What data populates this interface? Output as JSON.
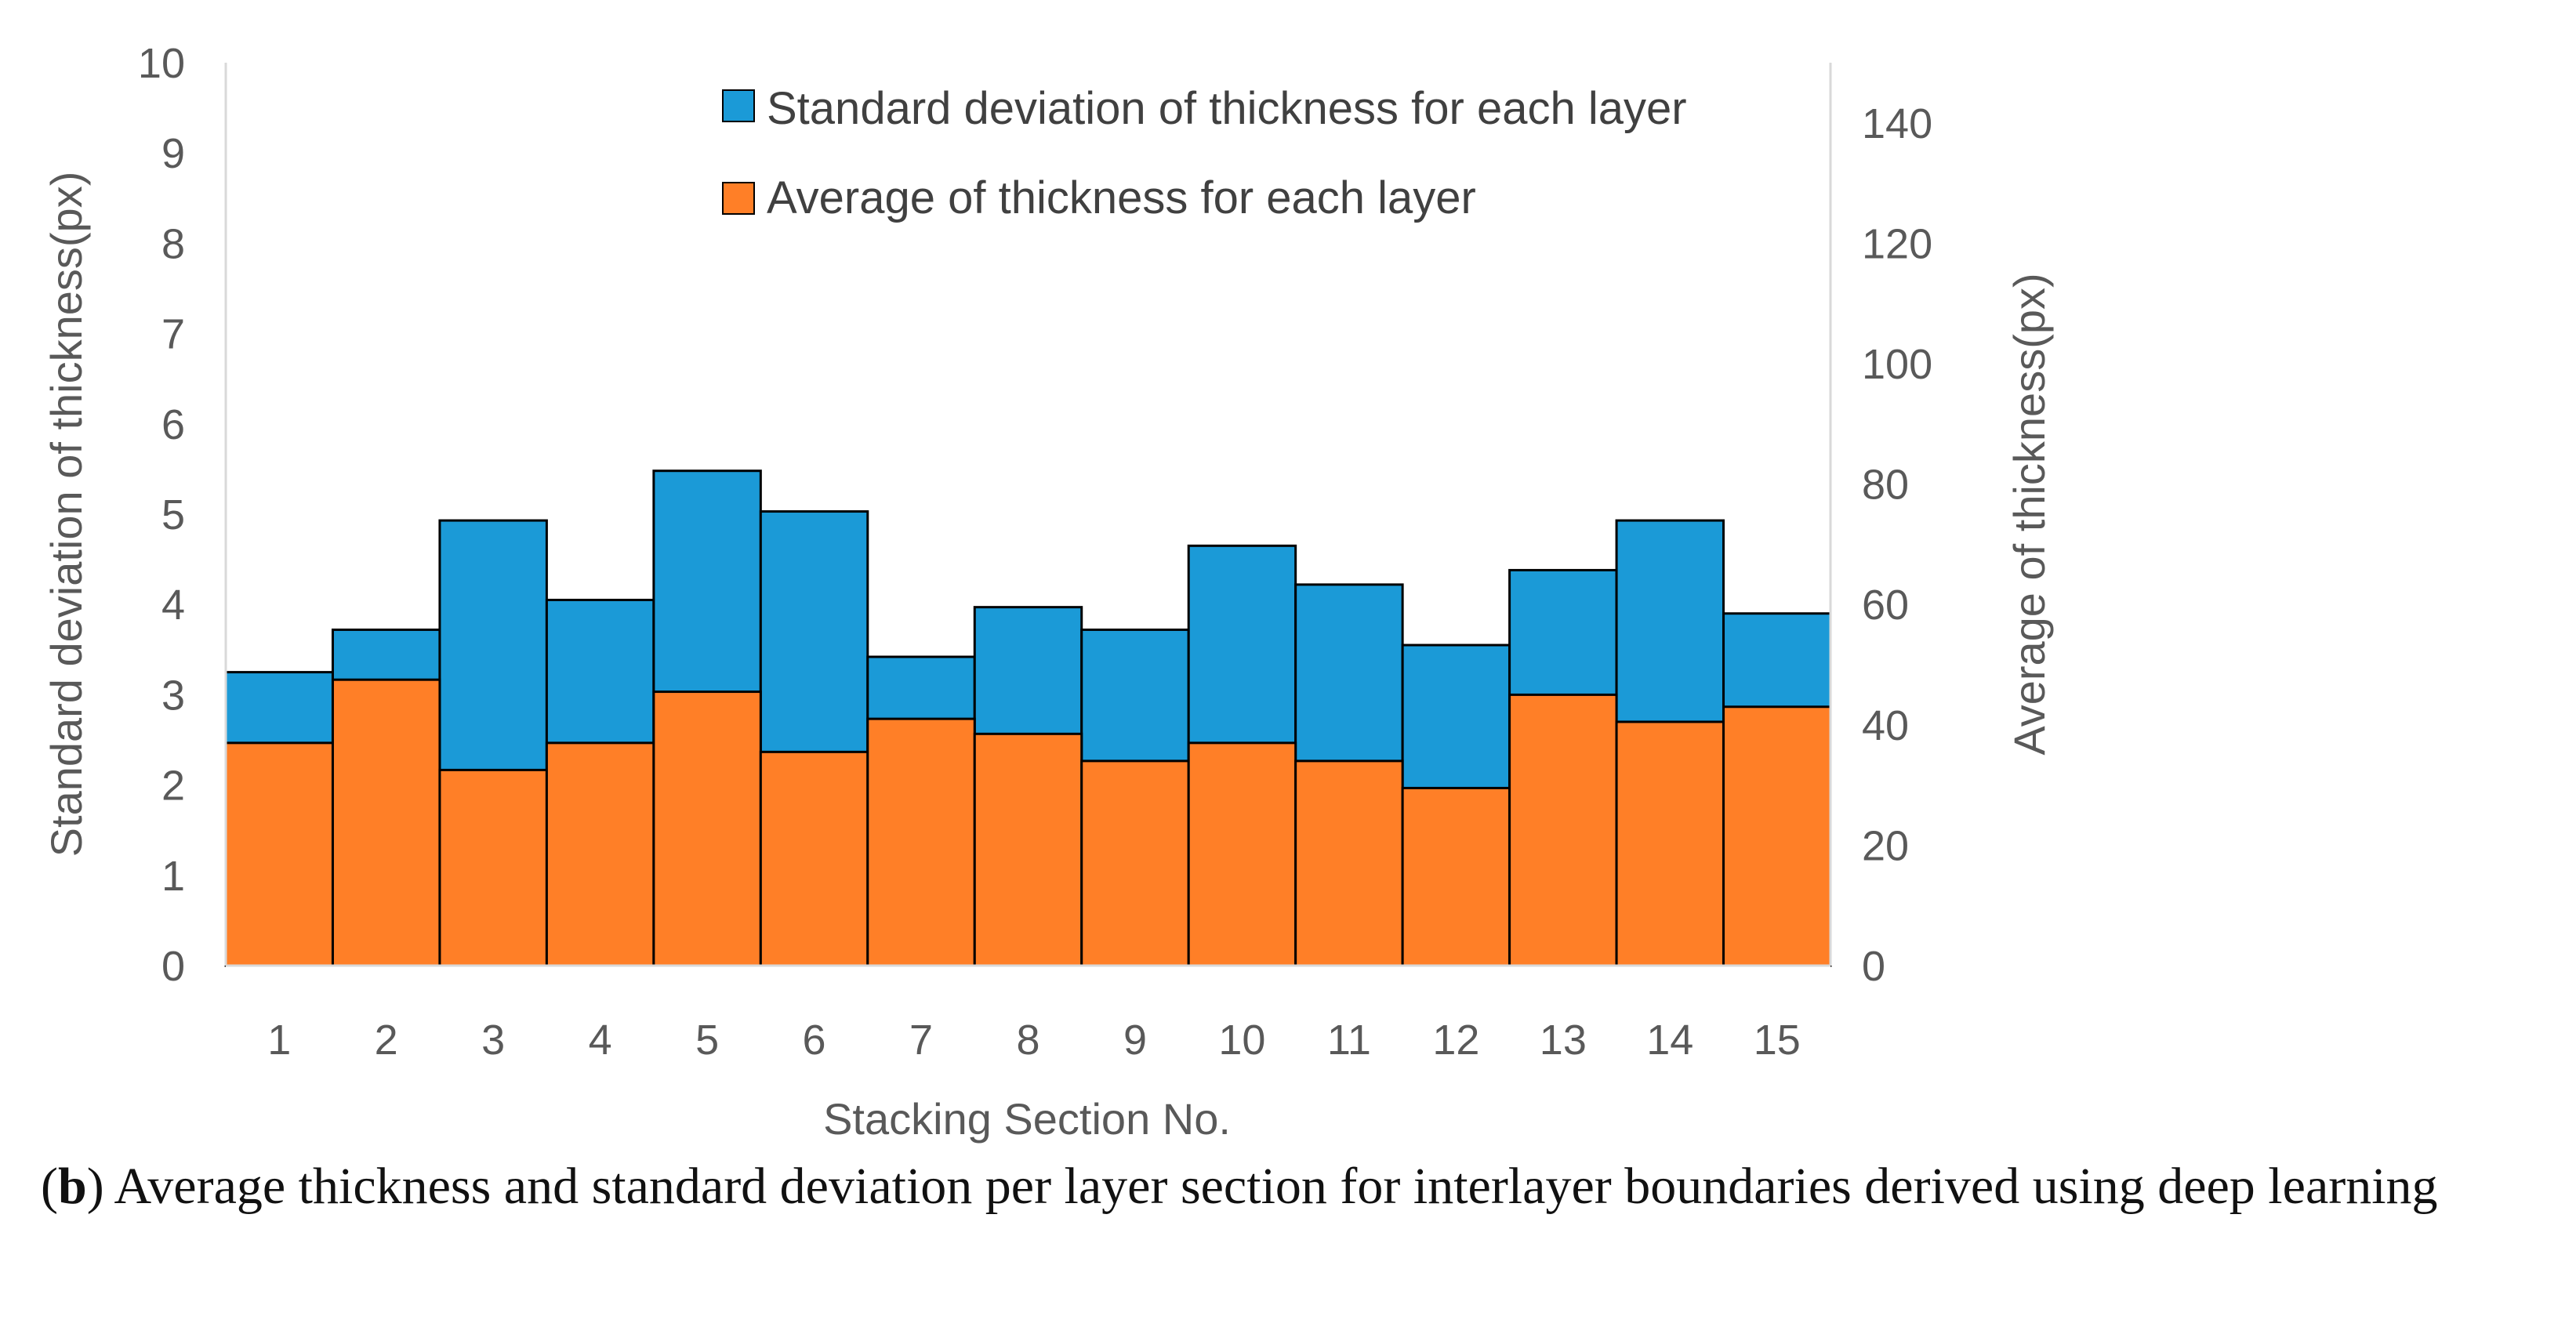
{
  "chart_data": {
    "type": "bar",
    "stacked": true,
    "categories": [
      "1",
      "2",
      "3",
      "4",
      "5",
      "6",
      "7",
      "8",
      "9",
      "10",
      "11",
      "12",
      "13",
      "14",
      "15"
    ],
    "series": [
      {
        "name": "Average of thickness for each layer",
        "axis": "right",
        "color": "#FF7F27",
        "values": [
          37,
          47.5,
          32.5,
          37,
          45.5,
          35.5,
          41,
          38.5,
          34,
          37,
          34,
          29.5,
          45,
          40.5,
          43
        ]
      },
      {
        "name": "Standard deviation of thickness for each layer",
        "axis": "left",
        "color": "#1B9AD7",
        "totals": [
          3.25,
          3.72,
          4.93,
          4.05,
          5.48,
          5.03,
          3.42,
          3.97,
          3.72,
          4.65,
          4.22,
          3.55,
          4.38,
          4.93,
          3.9
        ]
      }
    ],
    "left_axis": {
      "label": "Standard deviation of thickness(px)",
      "range": [
        0,
        10
      ],
      "ticks": [
        "0",
        "1",
        "2",
        "3",
        "4",
        "5",
        "6",
        "7",
        "8",
        "9",
        "10"
      ]
    },
    "right_axis": {
      "label": "Average of thickness(px)",
      "range": [
        0,
        150
      ],
      "ticks": [
        "0",
        "20",
        "40",
        "60",
        "80",
        "100",
        "120",
        "140"
      ]
    },
    "xlabel": "Stacking Section No.",
    "legend_position": "top-right"
  },
  "legend": {
    "std_label": "Standard deviation of thickness for each layer",
    "avg_label": "Average of thickness for each layer"
  },
  "caption": {
    "label": "b",
    "text": " Average thickness and standard deviation per layer section for interlayer boundaries derived using deep learning"
  }
}
